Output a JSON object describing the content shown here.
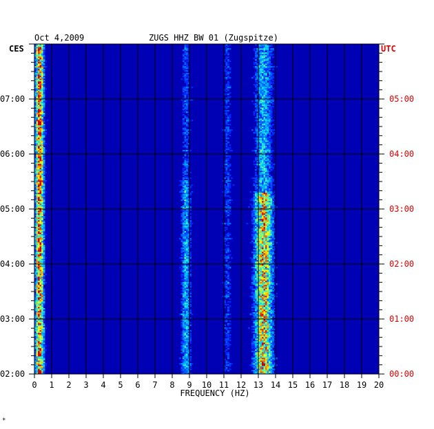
{
  "header": {
    "date": "Oct 4,2009",
    "station": "ZUGS HHZ BW 01 (Zugspitze)",
    "left_zone": "CES",
    "right_zone": "UTC"
  },
  "footer_mark": "*",
  "colors": {
    "background": "#0000b4",
    "grid": "#000000",
    "utc_labels": "#e00000",
    "text": "#000000"
  },
  "chart_data": {
    "type": "heatmap",
    "title": "ZUGS HHZ BW 01 (Zugspitze)",
    "xlabel": "FREQUENCY (HZ)",
    "xlim": [
      0,
      20
    ],
    "x_ticks": [
      "0",
      "1",
      "2",
      "3",
      "4",
      "5",
      "6",
      "7",
      "8",
      "9",
      "10",
      "11",
      "12",
      "13",
      "14",
      "15",
      "16",
      "17",
      "18",
      "19",
      "20"
    ],
    "ylim_hours": [
      2.0,
      8.0
    ],
    "left_ticks": [
      {
        "hour": 7,
        "label": "07:00"
      },
      {
        "hour": 6,
        "label": "06:00"
      },
      {
        "hour": 5,
        "label": "05:00"
      },
      {
        "hour": 4,
        "label": "04:00"
      },
      {
        "hour": 3,
        "label": "03:00"
      },
      {
        "hour": 2,
        "label": "02:00"
      }
    ],
    "right_ticks": [
      {
        "hour": 7,
        "label": "05:00"
      },
      {
        "hour": 6,
        "label": "04:00"
      },
      {
        "hour": 5,
        "label": "03:00"
      },
      {
        "hour": 4,
        "label": "02:00"
      },
      {
        "hour": 3,
        "label": "01:00"
      },
      {
        "hour": 2,
        "label": "00:00"
      }
    ],
    "energy_bands": [
      {
        "name": "low-frequency",
        "f_center": 0.3,
        "f_width": 0.25,
        "strength": 1.0
      },
      {
        "name": "band-8.8hz",
        "f_center": 8.8,
        "f_width": 0.3,
        "strength": 0.45
      },
      {
        "name": "band-11.2hz",
        "f_center": 11.2,
        "f_width": 0.25,
        "strength": 0.25
      },
      {
        "name": "band-13.3hz",
        "f_center": 13.3,
        "f_width": 0.55,
        "strength": 0.85
      }
    ],
    "grid": true
  }
}
